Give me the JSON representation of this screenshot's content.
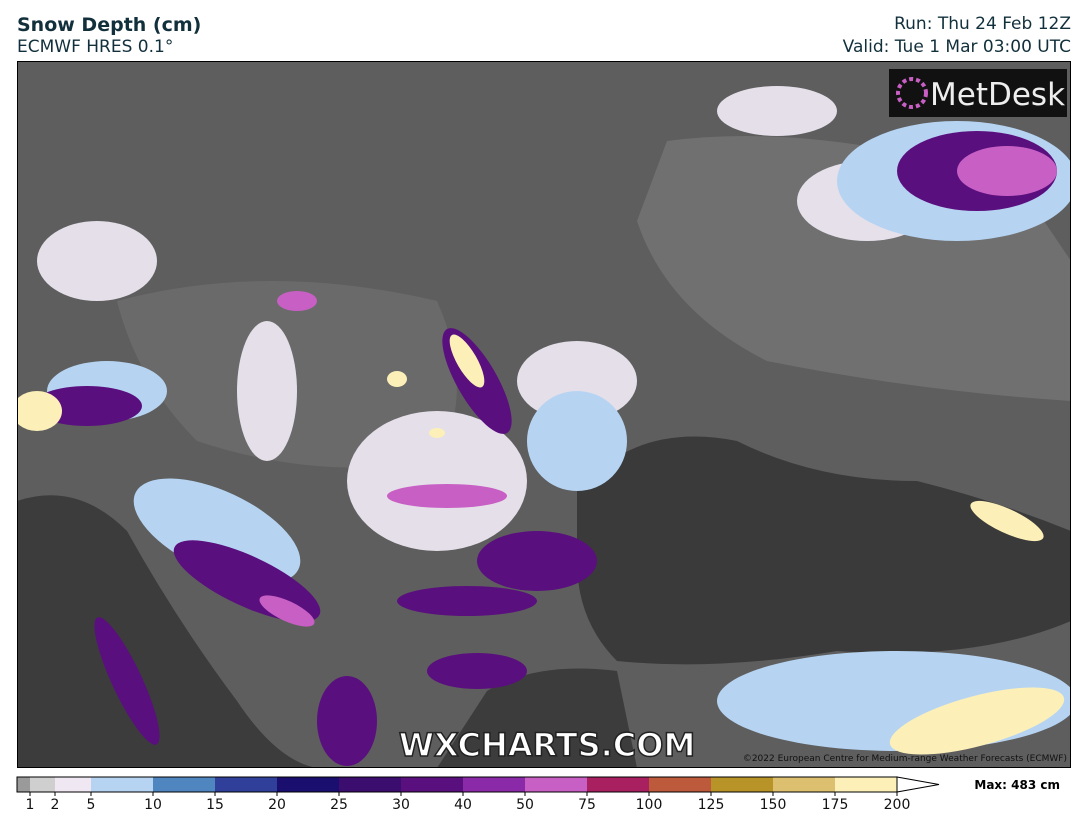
{
  "header": {
    "title": "Snow Depth (cm)",
    "model": "ECMWF HRES 0.1°",
    "run": "Run: Thu 24 Feb 12Z",
    "valid": "Valid: Tue 1 Mar 03:00 UTC"
  },
  "map": {
    "watermark": "WXCHARTS.COM",
    "logo": "MetDesk",
    "copyright": "©2022 European Centre for Medium-range Weather Forecasts (ECMWF)"
  },
  "legend": {
    "levels": [
      1,
      2,
      5,
      10,
      15,
      20,
      25,
      30,
      40,
      50,
      75,
      100,
      125,
      150,
      175,
      200
    ],
    "below_color": "#9a9a9a",
    "colors": [
      "#cfcfcf",
      "#efe8f2",
      "#b6d4f2",
      "#4f86c0",
      "#30409a",
      "#1a0f6e",
      "#3a0d6e",
      "#5a0f7e",
      "#8a2aa8",
      "#c85fc4",
      "#a8205f",
      "#bd5a3c",
      "#b89428",
      "#dcc070",
      "#fcf0b8"
    ],
    "max": "Max: 483 cm"
  }
}
